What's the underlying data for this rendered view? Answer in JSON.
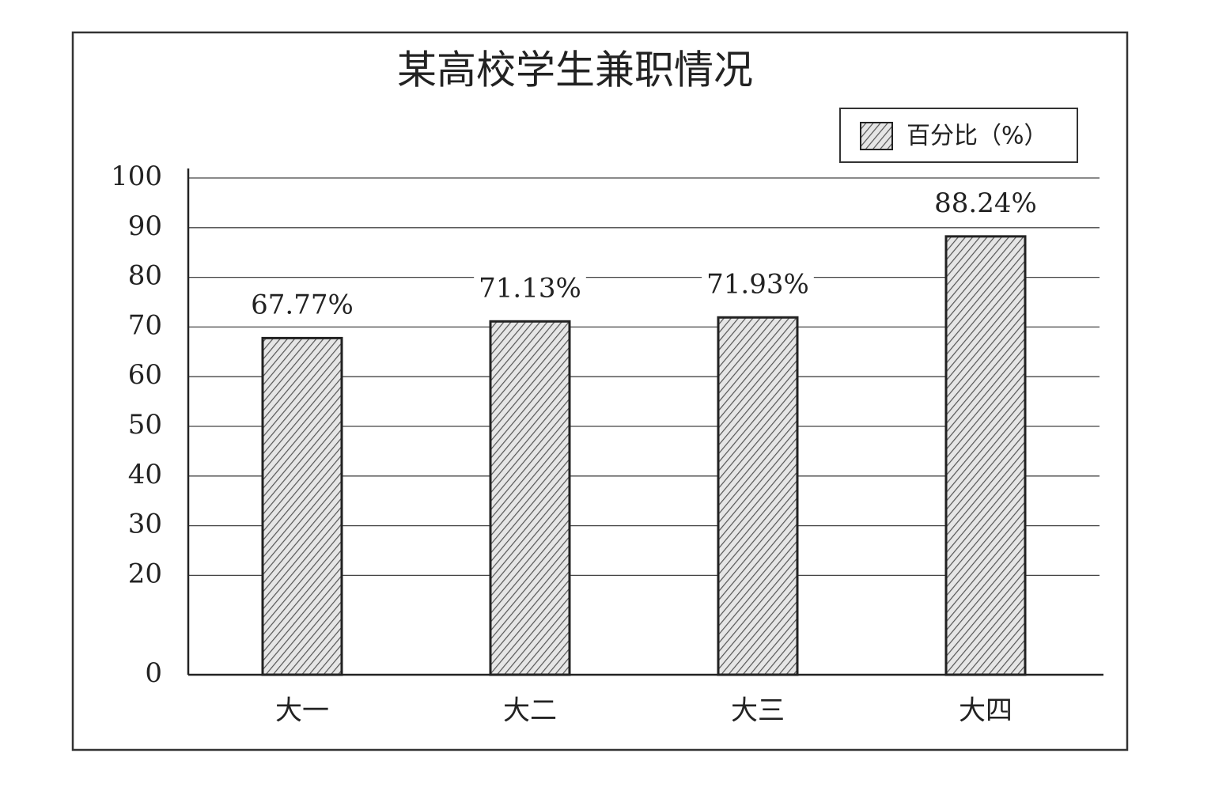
{
  "chart_data": {
    "type": "bar",
    "title": "某高校学生兼职情况",
    "categories": [
      "大一",
      "大二",
      "大三",
      "大四"
    ],
    "series": [
      {
        "name": "百分比（%）",
        "color": "#555555",
        "values": [
          67.77,
          71.13,
          71.93,
          88.24
        ],
        "value_labels": [
          "67.77%",
          "71.13%",
          "71.93%",
          "88.24%"
        ]
      }
    ],
    "ylim": [
      0,
      100
    ],
    "yticks": [
      0,
      20,
      30,
      40,
      50,
      60,
      70,
      80,
      90,
      100
    ],
    "grid": true,
    "legend": "top-right"
  }
}
